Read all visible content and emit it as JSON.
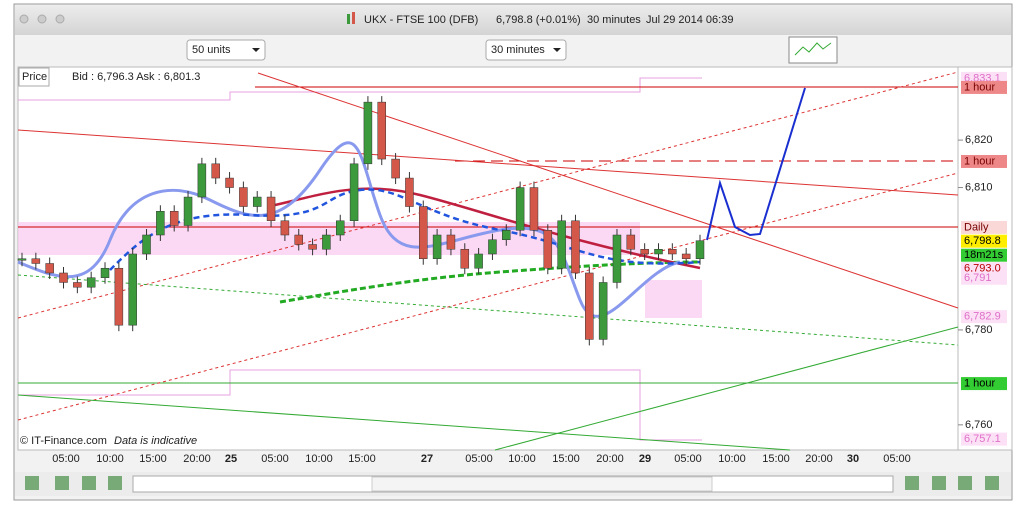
{
  "window": {
    "title": "UKX - FTSE 100 (DFB)",
    "quote": "6,798.8 (+0.01%)",
    "interval": "30 minutes",
    "timestamp": "Jul 29 2014 06:39"
  },
  "toolbar": {
    "units": "50 units",
    "interval": "30 minutes"
  },
  "chart_data": {
    "type": "candlestick",
    "label": "Price",
    "bid_ask": "Bid : 6,796.3 Ask : 6,801.3",
    "credit": "© IT-Finance.com",
    "note": "Data is indicative",
    "up_color": "#3c9a3c",
    "down_color": "#d4584a",
    "x": [
      "05:00",
      "10:00",
      "15:00",
      "20:00",
      "25",
      "05:00",
      "10:00",
      "15:00",
      "27",
      "05:00",
      "10:00",
      "15:00",
      "20:00",
      "29",
      "05:00",
      "10:00",
      "15:00",
      "20:00",
      "30",
      "05:00"
    ],
    "closes": [
      6795,
      6794,
      6792,
      6790,
      6789,
      6791,
      6793,
      6781,
      6796,
      6800,
      6805,
      6802,
      6808,
      6815,
      6812,
      6810,
      6806,
      6808,
      6803,
      6800,
      6798,
      6797,
      6800,
      6803,
      6815,
      6828,
      6816,
      6812,
      6806,
      6795,
      6800,
      6797,
      6793,
      6796,
      6799,
      6801,
      6810,
      6801,
      6793,
      6803,
      6792,
      6778,
      6790,
      6800,
      6797,
      6796,
      6797,
      6796,
      6795,
      6798.8
    ],
    "ylim": [
      6754.7,
      6835.4
    ],
    "yticks": [
      {
        "value": 6760,
        "label": "6,760"
      },
      {
        "value": 6780,
        "label": "6,780"
      },
      {
        "value": 6810,
        "label": "6,810"
      },
      {
        "value": 6820,
        "label": "6,820"
      }
    ],
    "price_tags": [
      {
        "text": "6,833.1",
        "value": 6833.1,
        "bg": "#fbe0f6",
        "fg": "#e070c8"
      },
      {
        "text": "1 hour",
        "value": 6831.2,
        "bg": "#e88",
        "fg": "#700"
      },
      {
        "text": "1 hour",
        "value": 6815.6,
        "bg": "#e88",
        "fg": "#700"
      },
      {
        "text": "Daily",
        "value": 6801.7,
        "bg": "#fbd8d8",
        "fg": "#700"
      },
      {
        "text": "6,798.8",
        "value": 6798.8,
        "bg": "#ffee00",
        "fg": "#000"
      },
      {
        "text": "18m21s",
        "bg": "#33cc33",
        "fg": "#000"
      },
      {
        "text": "6,793.0",
        "value": 6793.0,
        "bg": "#fbe0f6",
        "fg": "#b00"
      },
      {
        "text": "6,791",
        "value": 6791,
        "bg": "#fbe0f6",
        "fg": "#e070c8"
      },
      {
        "text": "6,782.9",
        "value": 6782.9,
        "bg": "#fbe0f6",
        "fg": "#e070c8"
      },
      {
        "text": "1 hour",
        "value": 6768.8,
        "bg": "#33cc33",
        "fg": "#000"
      },
      {
        "text": "6,757.1",
        "value": 6757.1,
        "bg": "#fbe0f6",
        "fg": "#e070c8"
      }
    ]
  }
}
